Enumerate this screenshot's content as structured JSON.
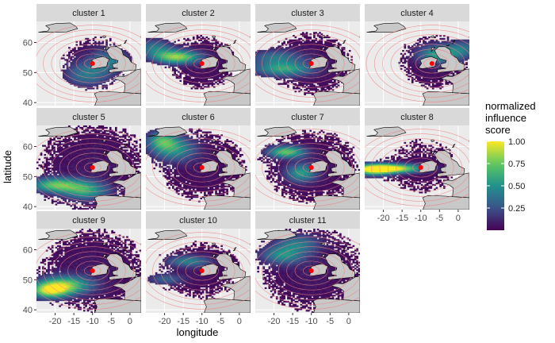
{
  "chart_data": {
    "type": "heatmap",
    "facet_var": "cluster",
    "panels": [
      {
        "label": "cluster 1",
        "center": [
          -10,
          53
        ]
      },
      {
        "label": "cluster 2",
        "center": [
          -10,
          53
        ]
      },
      {
        "label": "cluster 3",
        "center": [
          -10,
          53
        ]
      },
      {
        "label": "cluster 4",
        "center": [
          -7,
          53
        ]
      },
      {
        "label": "cluster 5",
        "center": [
          -10,
          53
        ]
      },
      {
        "label": "cluster 6",
        "center": [
          -10,
          53
        ]
      },
      {
        "label": "cluster 7",
        "center": [
          -10,
          53
        ]
      },
      {
        "label": "cluster 8",
        "center": [
          -10,
          53
        ]
      },
      {
        "label": "cluster 9",
        "center": [
          -10,
          53
        ]
      },
      {
        "label": "cluster 10",
        "center": [
          -10,
          53
        ]
      },
      {
        "label": "cluster 11",
        "center": [
          -10,
          53
        ]
      }
    ],
    "xlabel": "longitude",
    "ylabel": "latitude",
    "xlim": [
      -25,
      3
    ],
    "ylim": [
      39,
      67
    ],
    "x_ticks": [
      -20,
      -15,
      -10,
      -5,
      0
    ],
    "y_ticks": [
      40,
      50,
      60
    ],
    "legend": {
      "title_lines": [
        "normalized",
        "influence",
        "score"
      ],
      "ticks": [
        "0.25",
        "0.50",
        "0.75",
        "1.00"
      ],
      "tick_values": [
        0.25,
        0.5,
        0.75,
        1.0
      ],
      "range": [
        0,
        1
      ],
      "position": "right",
      "colormap": "viridis"
    },
    "grid": true,
    "colors": {
      "panel_bg": "#ebebeb",
      "strip_bg": "#d9d9d9",
      "land": "#c8c8c8",
      "rings": "#f08080",
      "marker": "#ff0000"
    }
  }
}
